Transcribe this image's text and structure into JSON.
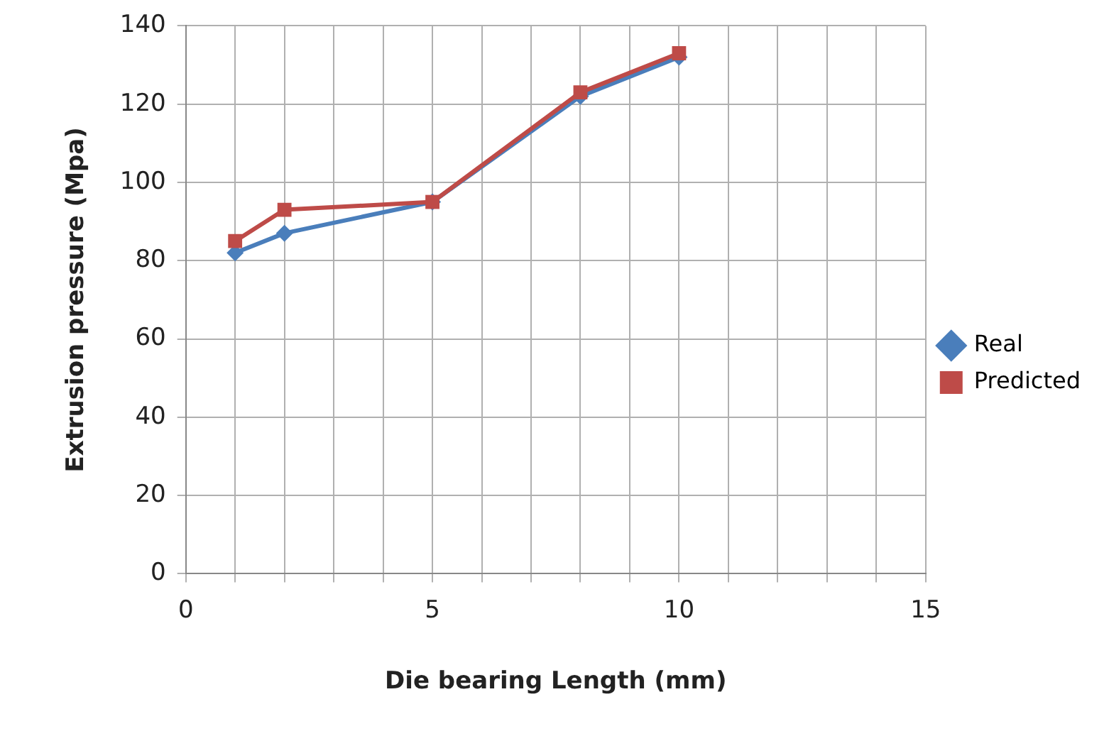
{
  "chart_data": {
    "type": "line",
    "xlabel": "Die bearing Length (mm)",
    "ylabel": "Extrusion pressure (Mpa)",
    "x": [
      1,
      2,
      5,
      8,
      10
    ],
    "series": [
      {
        "name": "Real",
        "color": "#4a7ebb",
        "values": [
          82,
          87,
          95,
          122,
          132
        ],
        "marker": "diamond"
      },
      {
        "name": "Predicted",
        "color": "#be4b48",
        "values": [
          85,
          93,
          95,
          123,
          133
        ],
        "marker": "square"
      }
    ],
    "xlim": [
      0,
      15
    ],
    "xticks": [
      0,
      {
        "value": 1,
        "label": null
      },
      {
        "value": 2,
        "label": null
      },
      {
        "value": 3,
        "label": null
      },
      {
        "value": 4,
        "label": null
      },
      5,
      {
        "value": 6,
        "label": null
      },
      {
        "value": 7,
        "label": null
      },
      {
        "value": 8,
        "label": null
      },
      {
        "value": 9,
        "label": null
      },
      10,
      {
        "value": 11,
        "label": null
      },
      {
        "value": 12,
        "label": null
      },
      {
        "value": 13,
        "label": null
      },
      {
        "value": 14,
        "label": null
      },
      15
    ],
    "ylim": [
      0,
      140
    ],
    "yticks": [
      0,
      20,
      40,
      60,
      80,
      100,
      120,
      140
    ],
    "grid": true,
    "legend": "right"
  }
}
